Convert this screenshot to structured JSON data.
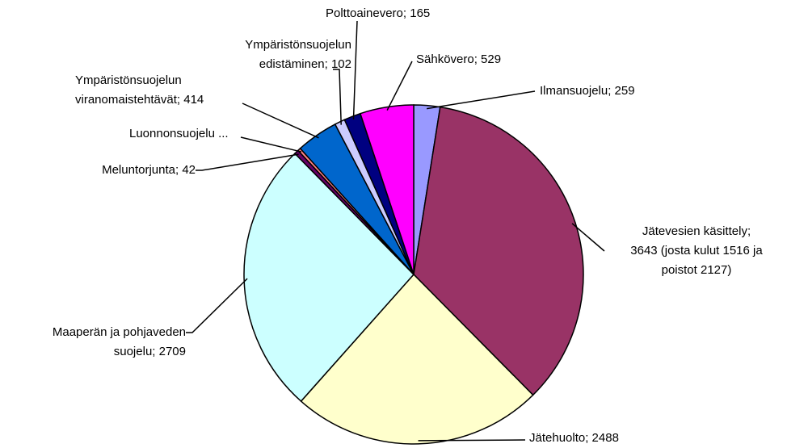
{
  "chart_data": {
    "type": "pie",
    "labels": [
      [
        "Ilmansuojelu;  259"
      ],
      [
        "Jätevesien käsittely;",
        "3643 (josta kulut 1516 ja",
        "poistot 2127)"
      ],
      [
        "Jätehuolto;  2488"
      ],
      [
        "Maaperän ja pohjaveden",
        "suojelu;  2709"
      ],
      [
        "Meluntorjunta;  42"
      ],
      [
        "Luonnonsuojelu ..."
      ],
      [
        "Ympäristönsuojelun",
        "viranomaistehtävät;  414"
      ],
      [
        "Ympäristönsuojelun",
        "edistäminen;  102"
      ],
      [
        "Polttoainevero;  165"
      ],
      [
        "Sähkövero;  529"
      ]
    ],
    "values": [
      259,
      3643,
      2488,
      2709,
      42,
      30,
      414,
      102,
      165,
      529
    ],
    "colors": [
      "#9999ff",
      "#993366",
      "#ffffcc",
      "#ccffff",
      "#660066",
      "#ff8080",
      "#0066cc",
      "#ccccff",
      "#000080",
      "#ff00ff"
    ]
  }
}
